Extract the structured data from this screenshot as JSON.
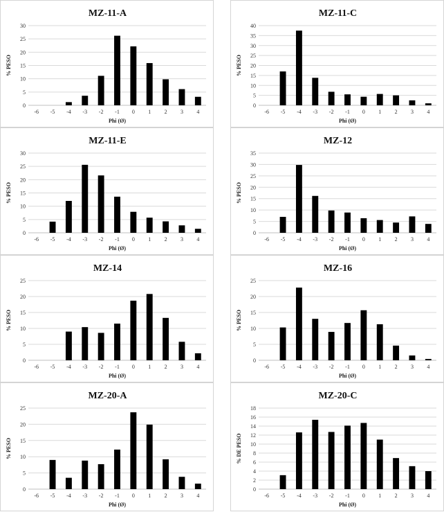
{
  "chart_data": [
    {
      "type": "bar",
      "title": "MZ-11-A",
      "xlabel": "Phi (Ø)",
      "ylabel": "% PESO",
      "categories": [
        "-6",
        "-5",
        "-4",
        "-3",
        "-2",
        "-1",
        "0",
        "1",
        "2",
        "3",
        "4"
      ],
      "values": [
        0,
        0,
        1.2,
        3.6,
        11.1,
        26.2,
        22.2,
        15.9,
        9.8,
        6.1,
        3.2
      ],
      "ylim": [
        0,
        30
      ],
      "yticks": [
        "0",
        "5",
        "10",
        "15",
        "20",
        "25",
        "30"
      ],
      "grid": true,
      "color": "#000000"
    },
    {
      "type": "bar",
      "title": "MZ-11-C",
      "xlabel": "Phi (Ø)",
      "ylabel": "% PESO",
      "categories": [
        "-6",
        "-5",
        "-4",
        "-3",
        "-2",
        "-1",
        "0",
        "1",
        "2",
        "3",
        "4"
      ],
      "values": [
        0,
        17.0,
        37.5,
        13.8,
        6.8,
        5.5,
        4.3,
        5.7,
        5.0,
        2.5,
        1.0
      ],
      "ylim": [
        0,
        40
      ],
      "yticks": [
        "0",
        "5",
        "10",
        "15",
        "20",
        "25",
        "30",
        "35",
        "40"
      ],
      "grid": true,
      "color": "#000000"
    },
    {
      "type": "bar",
      "title": "MZ-11-E",
      "xlabel": "Phi (Ø)",
      "ylabel": "% PESO",
      "categories": [
        "-6",
        "-5",
        "-4",
        "-3",
        "-2",
        "-1",
        "0",
        "1",
        "2",
        "3",
        "4"
      ],
      "values": [
        0,
        4.2,
        12.0,
        25.6,
        21.6,
        13.6,
        7.9,
        5.7,
        4.3,
        2.8,
        1.5
      ],
      "ylim": [
        0,
        30
      ],
      "yticks": [
        "0",
        "5",
        "10",
        "15",
        "20",
        "25",
        "30"
      ],
      "grid": true,
      "color": "#000000"
    },
    {
      "type": "bar",
      "title": "MZ-12",
      "xlabel": "Phi (Ø)",
      "ylabel": "% PESO",
      "categories": [
        "-6",
        "-5",
        "-4",
        "-3",
        "-2",
        "-1",
        "0",
        "1",
        "2",
        "3",
        "4"
      ],
      "values": [
        0,
        7.0,
        29.8,
        16.2,
        9.8,
        8.9,
        6.4,
        5.6,
        4.5,
        7.2,
        3.9
      ],
      "ylim": [
        0,
        35
      ],
      "yticks": [
        "0",
        "5",
        "10",
        "15",
        "20",
        "25",
        "30",
        "35"
      ],
      "grid": true,
      "color": "#000000"
    },
    {
      "type": "bar",
      "title": "MZ-14",
      "xlabel": "Phi (Ø)",
      "ylabel": "% PESO",
      "categories": [
        "-6",
        "-5",
        "-4",
        "-3",
        "-2",
        "-1",
        "0",
        "1",
        "2",
        "3",
        "4"
      ],
      "values": [
        0,
        0,
        9.0,
        10.4,
        8.6,
        11.5,
        18.7,
        20.8,
        13.3,
        5.8,
        2.2
      ],
      "ylim": [
        0,
        25
      ],
      "yticks": [
        "0",
        "5",
        "10",
        "15",
        "20",
        "25"
      ],
      "grid": true,
      "color": "#000000"
    },
    {
      "type": "bar",
      "title": "MZ-16",
      "xlabel": "Phi (Ø)",
      "ylabel": "% PESO",
      "categories": [
        "-6",
        "-5",
        "-4",
        "-3",
        "-2",
        "-1",
        "0",
        "1",
        "2",
        "3",
        "4"
      ],
      "values": [
        0,
        10.3,
        22.8,
        13.0,
        8.9,
        11.7,
        15.7,
        11.3,
        4.6,
        1.5,
        0.4
      ],
      "ylim": [
        0,
        25
      ],
      "yticks": [
        "0",
        "5",
        "10",
        "15",
        "20",
        "25"
      ],
      "grid": true,
      "color": "#000000"
    },
    {
      "type": "bar",
      "title": "MZ-20-A",
      "xlabel": "Phi (Ø)",
      "ylabel": "% PESO",
      "categories": [
        "-6",
        "-5",
        "-4",
        "-3",
        "-2",
        "-1",
        "0",
        "1",
        "2",
        "3",
        "4"
      ],
      "values": [
        0,
        9.0,
        3.5,
        8.8,
        7.7,
        12.2,
        23.7,
        19.9,
        9.2,
        3.8,
        1.7
      ],
      "ylim": [
        0,
        25
      ],
      "yticks": [
        "0",
        "5",
        "10",
        "15",
        "20",
        "25"
      ],
      "grid": true,
      "color": "#000000"
    },
    {
      "type": "bar",
      "title": "MZ-20-C",
      "xlabel": "Phi (Ø)",
      "ylabel": "% DE PESO",
      "categories": [
        "-6",
        "-5",
        "-4",
        "-3",
        "-2",
        "-1",
        "0",
        "1",
        "2",
        "3",
        "4"
      ],
      "values": [
        0,
        3.1,
        12.6,
        15.4,
        12.7,
        14.1,
        14.7,
        11.0,
        6.9,
        5.1,
        4.0
      ],
      "ylim": [
        0,
        18
      ],
      "yticks": [
        "0",
        "2",
        "4",
        "6",
        "8",
        "10",
        "12",
        "14",
        "16",
        "18"
      ],
      "grid": true,
      "color": "#000000"
    }
  ]
}
